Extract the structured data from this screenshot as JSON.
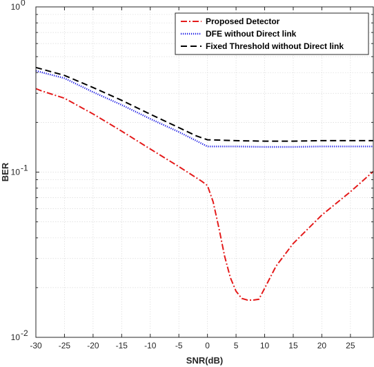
{
  "chart_data": {
    "type": "line",
    "xlabel": "SNR(dB)",
    "ylabel": "BER",
    "xlim": [
      -30,
      29
    ],
    "ylim": [
      0.01,
      1
    ],
    "yscale": "log",
    "grid": true,
    "legend_position": "top-right",
    "x_ticks": [
      -30,
      -25,
      -20,
      -15,
      -10,
      -5,
      0,
      5,
      10,
      15,
      20,
      25
    ],
    "x_tick_labels": [
      "-30",
      "-25",
      "-20",
      "-15",
      "-10",
      "-5",
      "0",
      "5",
      "10",
      "15",
      "20",
      "25"
    ],
    "y_ticks": [
      0.01,
      0.1,
      1
    ],
    "y_tick_labels": [
      {
        "base": "10",
        "exp": "-2"
      },
      {
        "base": "10",
        "exp": "-1"
      },
      {
        "base": "10",
        "exp": "0"
      }
    ],
    "series": [
      {
        "name": "Proposed Detector",
        "color": "#e41a1a",
        "style": "dash-dot",
        "x": [
          -30,
          -29,
          -25,
          -20,
          -15,
          -10,
          -5,
          -1,
          0,
          1,
          2,
          3,
          4,
          5,
          6,
          7,
          8,
          9,
          10,
          12,
          15,
          20,
          25,
          29
        ],
        "y": [
          0.32,
          0.31,
          0.28,
          0.225,
          0.177,
          0.138,
          0.108,
          0.088,
          0.083,
          0.066,
          0.046,
          0.031,
          0.023,
          0.019,
          0.0172,
          0.0168,
          0.0168,
          0.017,
          0.0198,
          0.027,
          0.037,
          0.055,
          0.076,
          0.101
        ]
      },
      {
        "name": "DFE without Direct link",
        "color": "#1a1ae6",
        "style": "dotted",
        "x": [
          -30,
          -25,
          -20,
          -15,
          -10,
          -5,
          -2,
          0,
          5,
          10,
          15,
          20,
          25,
          29
        ],
        "y": [
          0.41,
          0.37,
          0.305,
          0.255,
          0.21,
          0.175,
          0.155,
          0.143,
          0.143,
          0.142,
          0.142,
          0.143,
          0.143,
          0.143
        ]
      },
      {
        "name": "Fixed Threshold without Direct link",
        "color": "#000000",
        "style": "dashed",
        "x": [
          -30,
          -25,
          -20,
          -15,
          -10,
          -5,
          -2,
          0,
          5,
          10,
          15,
          20,
          25,
          29
        ],
        "y": [
          0.43,
          0.385,
          0.325,
          0.272,
          0.224,
          0.186,
          0.166,
          0.157,
          0.155,
          0.154,
          0.154,
          0.155,
          0.155,
          0.155
        ]
      }
    ]
  }
}
